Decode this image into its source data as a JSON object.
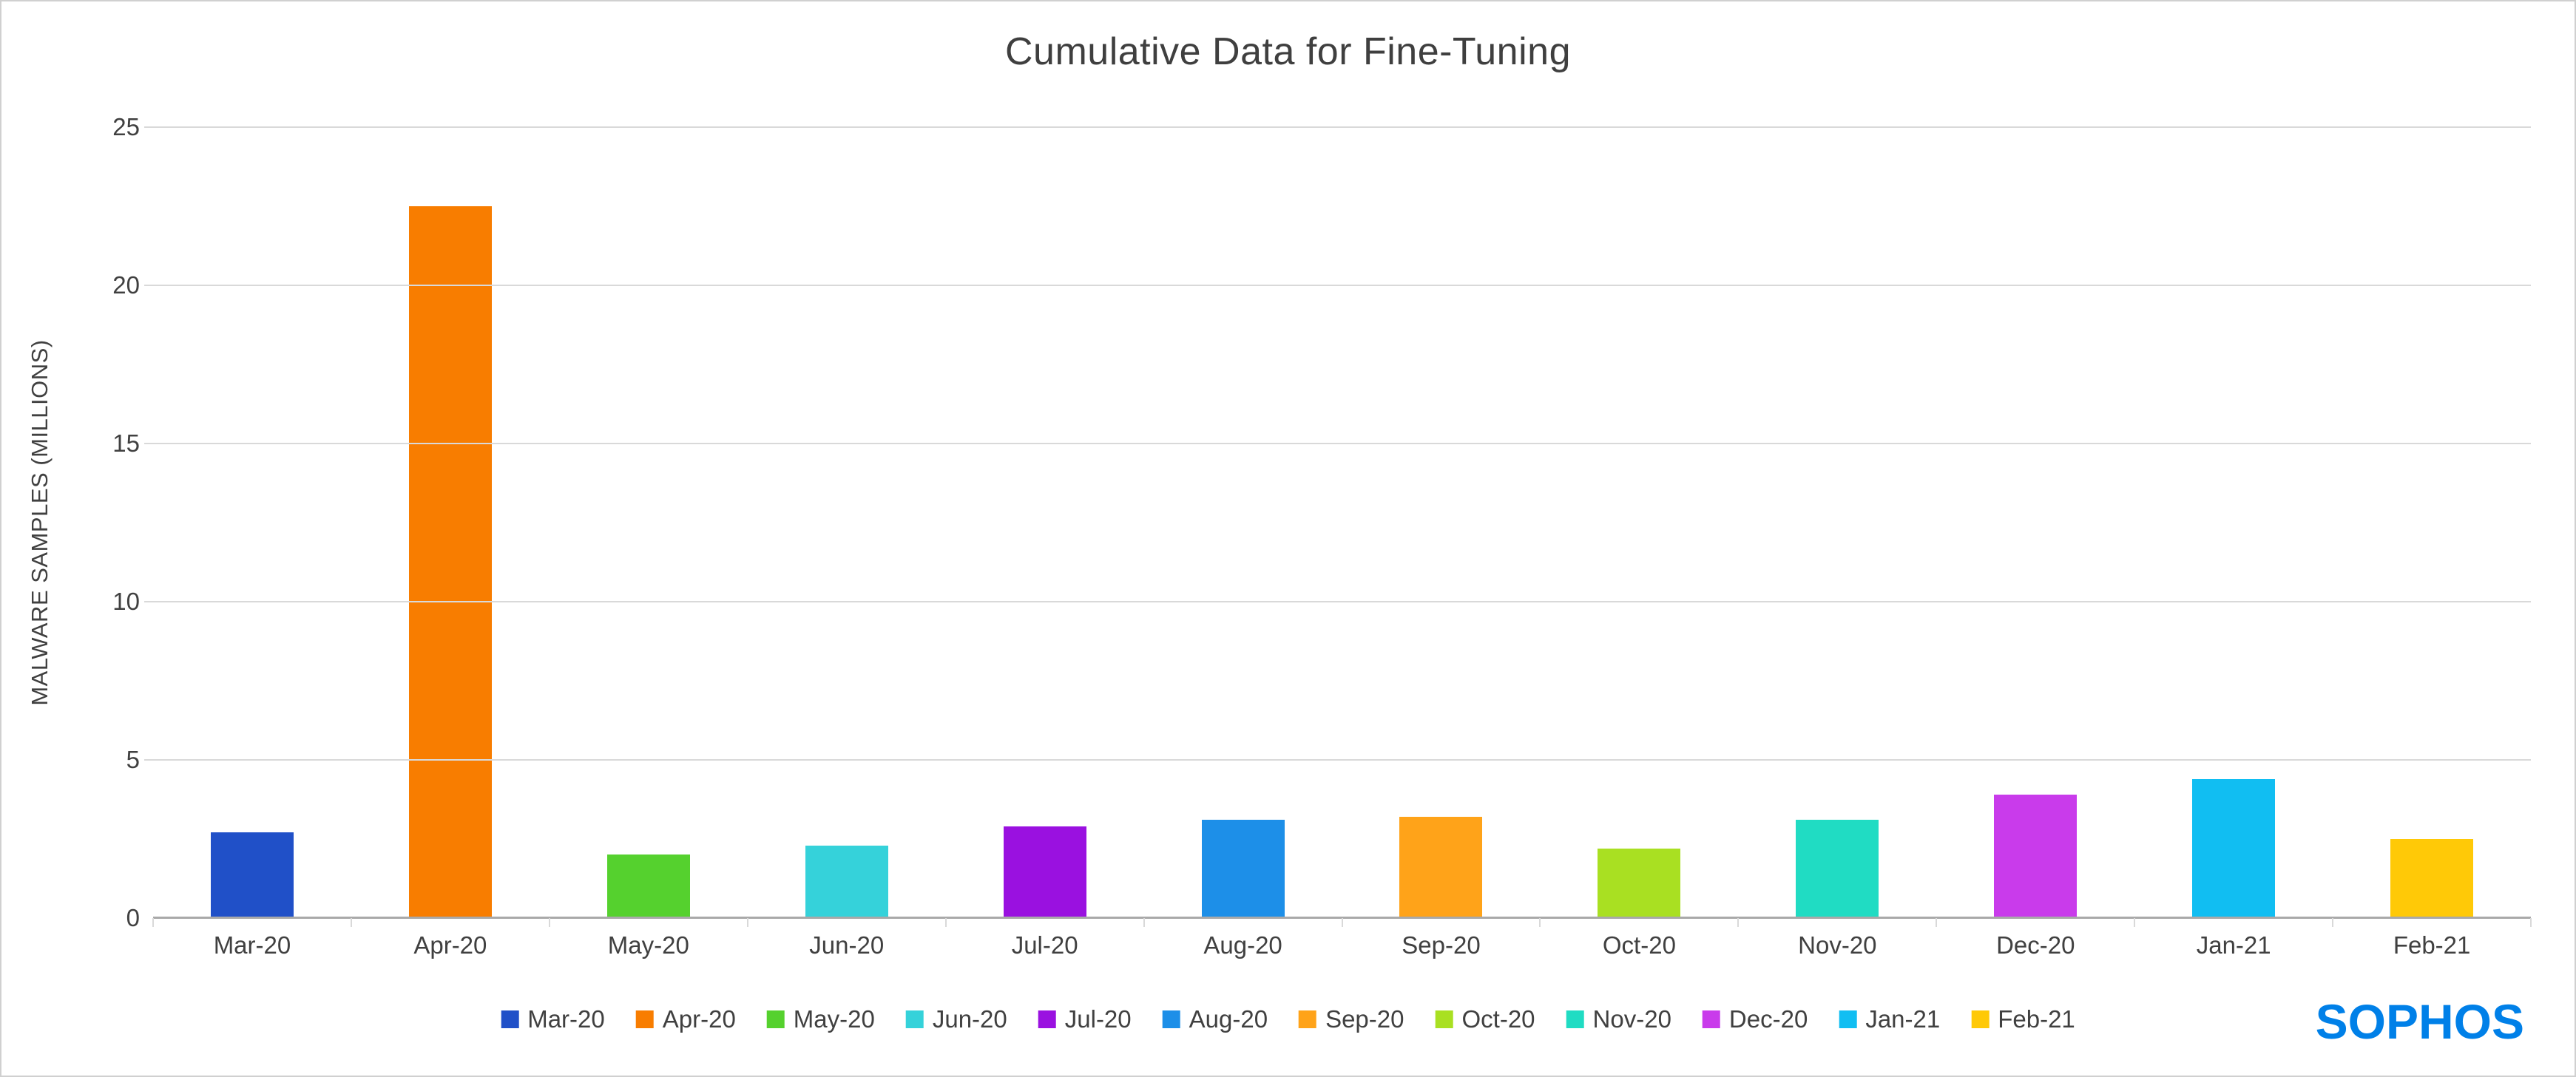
{
  "title": "Cumulative Data for Fine-Tuning",
  "y_axis_title": "MALWARE SAMPLES (MILLIONS)",
  "brand": {
    "name": "SOPHOS",
    "color": "#0080E8"
  },
  "chart_data": {
    "type": "bar",
    "title": "Cumulative Data for Fine-Tuning",
    "xlabel": "",
    "ylabel": "MALWARE SAMPLES (MILLIONS)",
    "ylim": [
      0,
      25
    ],
    "yticks": [
      0,
      5,
      10,
      15,
      20,
      25
    ],
    "grid": true,
    "legend_position": "bottom",
    "categories": [
      "Mar-20",
      "Apr-20",
      "May-20",
      "Jun-20",
      "Jul-20",
      "Aug-20",
      "Sep-20",
      "Oct-20",
      "Nov-20",
      "Dec-20",
      "Jan-21",
      "Feb-21"
    ],
    "values": [
      2.7,
      22.5,
      2.0,
      2.3,
      2.9,
      3.1,
      3.2,
      2.2,
      3.1,
      3.9,
      4.4,
      2.5
    ],
    "colors": [
      "#2050C8",
      "#F87D00",
      "#55D12E",
      "#35D2DA",
      "#9A11E0",
      "#1D8FE8",
      "#FFA319",
      "#A9E022",
      "#20DCC3",
      "#C93BEB",
      "#11BEF2",
      "#FFC907"
    ]
  }
}
